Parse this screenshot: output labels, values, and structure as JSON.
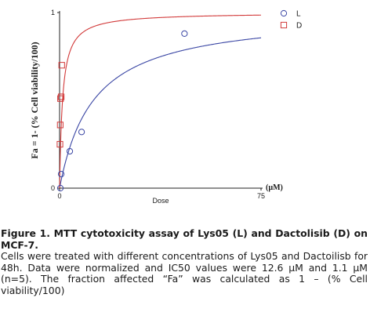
{
  "chart_data": {
    "type": "scatter",
    "title": "",
    "xlabel": "Dose",
    "x_unit": "(µM)",
    "ylabel": "Fa = 1- (% Cell viability/100)",
    "xlim": [
      0,
      75
    ],
    "ylim": [
      0,
      1
    ],
    "x_ticks": [
      "0",
      "75"
    ],
    "y_ticks": [
      "0",
      "1"
    ],
    "legend_position": "top-right",
    "series": [
      {
        "name": "L",
        "color": "#3a46a4",
        "marker": "circle",
        "ic50": 12.6,
        "fit_curve": true,
        "points": [
          {
            "x": 0.3,
            "y": 0.0
          },
          {
            "x": 0.6,
            "y": 0.08
          },
          {
            "x": 3.8,
            "y": 0.21
          },
          {
            "x": 8.2,
            "y": 0.32
          },
          {
            "x": 46.5,
            "y": 0.88
          }
        ]
      },
      {
        "name": "D",
        "color": "#d23a3a",
        "marker": "square",
        "ic50": 1.1,
        "fit_curve": true,
        "points": [
          {
            "x": 0.15,
            "y": 0.25
          },
          {
            "x": 0.25,
            "y": 0.36
          },
          {
            "x": 0.35,
            "y": 0.51
          },
          {
            "x": 0.6,
            "y": 0.52
          },
          {
            "x": 0.8,
            "y": 0.7
          }
        ]
      }
    ]
  },
  "caption": {
    "title": "Figure 1. MTT cytotoxicity assay of Lys05 (L) and Dactolisib (D) on MCF-7.",
    "body": "Cells were treated with different concentrations of Lys05 and Dactoilisb for 48h. Data were normalized and IC50 values were 12.6 µM and 1.1 µM (n=5). The fraction affected “Fa” was calculated as 1 – (% Cell viability/100)"
  }
}
